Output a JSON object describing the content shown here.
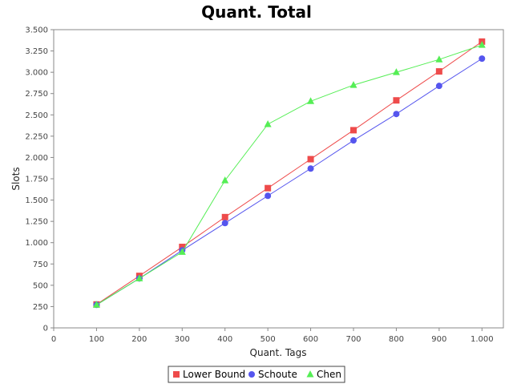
{
  "chart_data": {
    "type": "line",
    "title": "Quant. Total",
    "xlabel": "Quant. Tags",
    "ylabel": "Slots",
    "x": [
      100,
      200,
      300,
      400,
      500,
      600,
      700,
      800,
      900,
      1000
    ],
    "xlim": [
      0,
      1050
    ],
    "ylim": [
      0,
      3500
    ],
    "xticks": [
      0,
      100,
      200,
      300,
      400,
      500,
      600,
      700,
      800,
      900,
      1000
    ],
    "xtick_labels": [
      "0",
      "100",
      "200",
      "300",
      "400",
      "500",
      "600",
      "700",
      "800",
      "900",
      "1.000"
    ],
    "yticks": [
      0,
      250,
      500,
      750,
      1000,
      1250,
      1500,
      1750,
      2000,
      2250,
      2500,
      2750,
      3000,
      3250,
      3500
    ],
    "ytick_labels": [
      "0",
      "250",
      "500",
      "750",
      "1.000",
      "1.250",
      "1.500",
      "1.750",
      "2.000",
      "2.250",
      "2.500",
      "2.750",
      "3.000",
      "3.250",
      "3.500"
    ],
    "grid": false,
    "legend_position": "bottom",
    "series": [
      {
        "name": "Lower Bound",
        "color": "#ee4b4b",
        "marker": "square",
        "values": [
          275,
          610,
          950,
          1300,
          1640,
          1980,
          2320,
          2670,
          3010,
          3360
        ]
      },
      {
        "name": "Schoute",
        "color": "#5555ee",
        "marker": "circle",
        "values": [
          270,
          580,
          910,
          1230,
          1550,
          1870,
          2200,
          2510,
          2840,
          3160
        ]
      },
      {
        "name": "Chen",
        "color": "#55ee55",
        "marker": "triangle",
        "values": [
          270,
          580,
          890,
          1730,
          2390,
          2660,
          2850,
          3000,
          3150,
          3320
        ]
      }
    ]
  }
}
